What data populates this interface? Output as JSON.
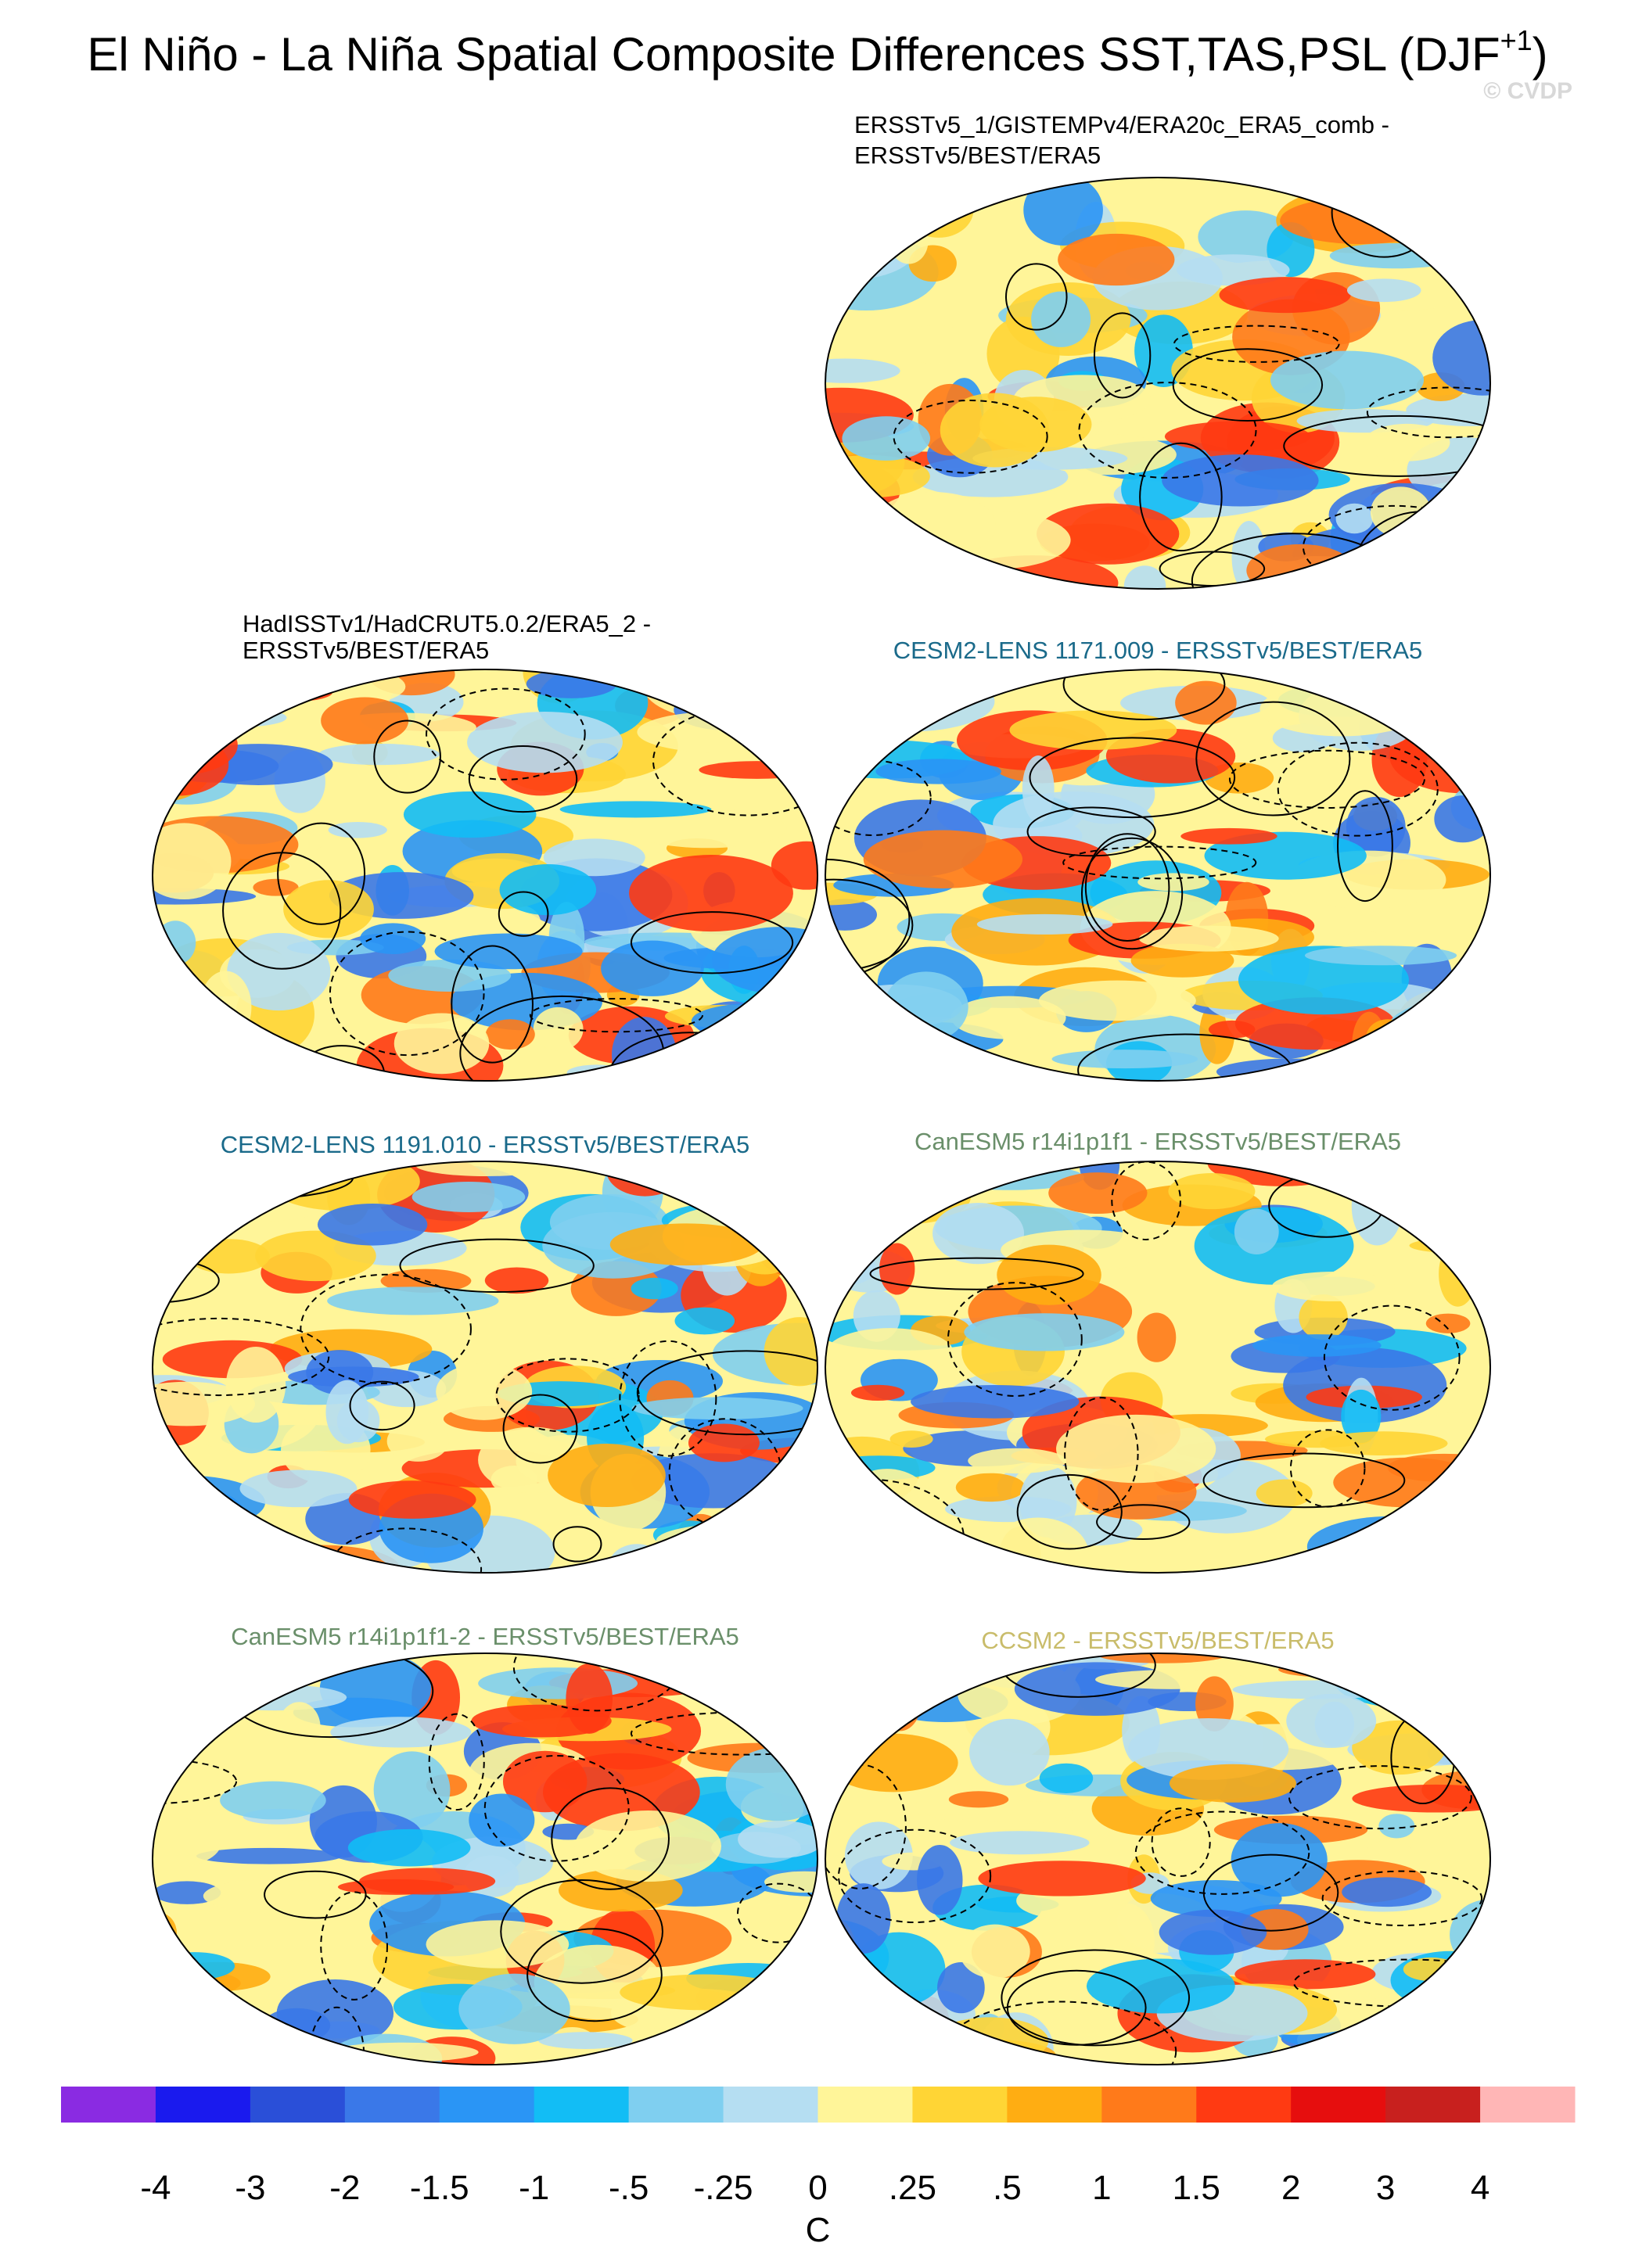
{
  "title": {
    "main": "El Niño - La Niña Spatial Composite Differences SST,TAS,PSL (DJF",
    "superscript": "+1",
    "close": ")"
  },
  "watermark": "© CVDP",
  "panels": [
    {
      "title": [
        "ERSSTv5_1/GISTEMPv4/ERA20c_ERA5_comb -",
        "ERSSTv5/BEST/ERA5"
      ],
      "color": "#000000"
    },
    {
      "title": [
        "HadISSTv1/HadCRUT5.0.2/ERA5_2 -",
        "ERSSTv5/BEST/ERA5"
      ],
      "color": "#000000"
    },
    {
      "title": [
        "CESM2-LENS 1171.009 - ERSSTv5/BEST/ERA5"
      ],
      "color": "#1a6a8a"
    },
    {
      "title": [
        "CESM2-LENS 1191.010 - ERSSTv5/BEST/ERA5"
      ],
      "color": "#1a6a8a"
    },
    {
      "title": [
        "CanESM5 r14i1p1f1 - ERSSTv5/BEST/ERA5"
      ],
      "color": "#6a8f6a"
    },
    {
      "title": [
        "CanESM5 r14i1p1f1-2 - ERSSTv5/BEST/ERA5"
      ],
      "color": "#6a8f6a"
    },
    {
      "title": [
        "CCSM2 - ERSSTv5/BEST/ERA5"
      ],
      "color": "#c9bc6a"
    }
  ],
  "colorbar": {
    "labels": [
      "-4",
      "-3",
      "-2",
      "-1.5",
      "-1",
      "-.5",
      "-.25",
      "0",
      ".25",
      ".5",
      "1",
      "1.5",
      "2",
      "3",
      "4"
    ],
    "colors": [
      "#8a2be2",
      "#1a1aee",
      "#2a4fd8",
      "#3a78e8",
      "#2a95f5",
      "#12bdf5",
      "#7fcff0",
      "#b5def2",
      "#fff599",
      "#ffd535",
      "#ffad12",
      "#ff7a1a",
      "#ff3a12",
      "#e60e0e",
      "#c8201e",
      "#ffb6b6"
    ],
    "unit": "C"
  }
}
